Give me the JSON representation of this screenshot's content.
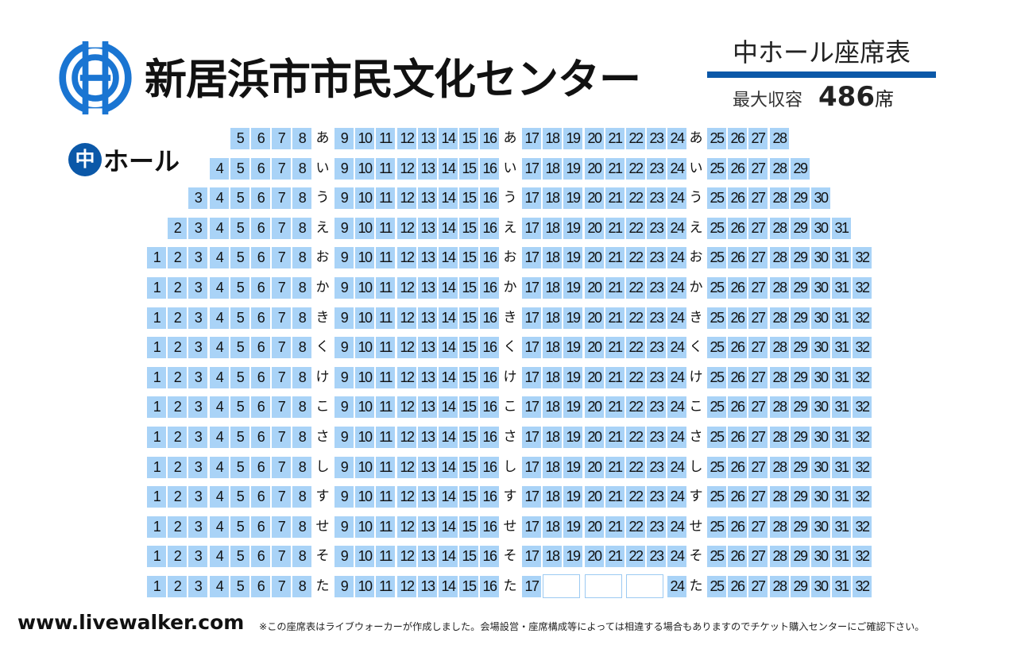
{
  "header": {
    "venue_title": "新居浜市市民文化センター",
    "hall_title": "中ホール座席表",
    "capacity_label": "最大収容",
    "capacity_number": "486",
    "capacity_unit": "席"
  },
  "hall_badge": {
    "circle": "中",
    "text": "ホール"
  },
  "colors": {
    "seat": "#a9d3f7",
    "brand_blue": "#0b58a8"
  },
  "icons": {
    "logo": "city-emblem-icon"
  },
  "seat_map": {
    "rows": [
      {
        "label": "あ",
        "seats": [
          5,
          6,
          7,
          8,
          9,
          10,
          11,
          12,
          13,
          14,
          15,
          16,
          17,
          18,
          19,
          20,
          21,
          22,
          23,
          24,
          25,
          26,
          27,
          28
        ],
        "blank": []
      },
      {
        "label": "い",
        "seats": [
          4,
          5,
          6,
          7,
          8,
          9,
          10,
          11,
          12,
          13,
          14,
          15,
          16,
          17,
          18,
          19,
          20,
          21,
          22,
          23,
          24,
          25,
          26,
          27,
          28,
          29
        ],
        "blank": []
      },
      {
        "label": "う",
        "seats": [
          3,
          4,
          5,
          6,
          7,
          8,
          9,
          10,
          11,
          12,
          13,
          14,
          15,
          16,
          17,
          18,
          19,
          20,
          21,
          22,
          23,
          24,
          25,
          26,
          27,
          28,
          29,
          30
        ],
        "blank": []
      },
      {
        "label": "え",
        "seats": [
          2,
          3,
          4,
          5,
          6,
          7,
          8,
          9,
          10,
          11,
          12,
          13,
          14,
          15,
          16,
          17,
          18,
          19,
          20,
          21,
          22,
          23,
          24,
          25,
          26,
          27,
          28,
          29,
          30,
          31
        ],
        "blank": []
      },
      {
        "label": "お",
        "seats": [
          1,
          2,
          3,
          4,
          5,
          6,
          7,
          8,
          9,
          10,
          11,
          12,
          13,
          14,
          15,
          16,
          17,
          18,
          19,
          20,
          21,
          22,
          23,
          24,
          25,
          26,
          27,
          28,
          29,
          30,
          31,
          32
        ],
        "blank": []
      },
      {
        "label": "か",
        "seats": [
          1,
          2,
          3,
          4,
          5,
          6,
          7,
          8,
          9,
          10,
          11,
          12,
          13,
          14,
          15,
          16,
          17,
          18,
          19,
          20,
          21,
          22,
          23,
          24,
          25,
          26,
          27,
          28,
          29,
          30,
          31,
          32
        ],
        "blank": []
      },
      {
        "label": "き",
        "seats": [
          1,
          2,
          3,
          4,
          5,
          6,
          7,
          8,
          9,
          10,
          11,
          12,
          13,
          14,
          15,
          16,
          17,
          18,
          19,
          20,
          21,
          22,
          23,
          24,
          25,
          26,
          27,
          28,
          29,
          30,
          31,
          32
        ],
        "blank": []
      },
      {
        "label": "く",
        "seats": [
          1,
          2,
          3,
          4,
          5,
          6,
          7,
          8,
          9,
          10,
          11,
          12,
          13,
          14,
          15,
          16,
          17,
          18,
          19,
          20,
          21,
          22,
          23,
          24,
          25,
          26,
          27,
          28,
          29,
          30,
          31,
          32
        ],
        "blank": []
      },
      {
        "label": "け",
        "seats": [
          1,
          2,
          3,
          4,
          5,
          6,
          7,
          8,
          9,
          10,
          11,
          12,
          13,
          14,
          15,
          16,
          17,
          18,
          19,
          20,
          21,
          22,
          23,
          24,
          25,
          26,
          27,
          28,
          29,
          30,
          31,
          32
        ],
        "blank": []
      },
      {
        "label": "こ",
        "seats": [
          1,
          2,
          3,
          4,
          5,
          6,
          7,
          8,
          9,
          10,
          11,
          12,
          13,
          14,
          15,
          16,
          17,
          18,
          19,
          20,
          21,
          22,
          23,
          24,
          25,
          26,
          27,
          28,
          29,
          30,
          31,
          32
        ],
        "blank": []
      },
      {
        "label": "さ",
        "seats": [
          1,
          2,
          3,
          4,
          5,
          6,
          7,
          8,
          9,
          10,
          11,
          12,
          13,
          14,
          15,
          16,
          17,
          18,
          19,
          20,
          21,
          22,
          23,
          24,
          25,
          26,
          27,
          28,
          29,
          30,
          31,
          32
        ],
        "blank": []
      },
      {
        "label": "し",
        "seats": [
          1,
          2,
          3,
          4,
          5,
          6,
          7,
          8,
          9,
          10,
          11,
          12,
          13,
          14,
          15,
          16,
          17,
          18,
          19,
          20,
          21,
          22,
          23,
          24,
          25,
          26,
          27,
          28,
          29,
          30,
          31,
          32
        ],
        "blank": []
      },
      {
        "label": "す",
        "seats": [
          1,
          2,
          3,
          4,
          5,
          6,
          7,
          8,
          9,
          10,
          11,
          12,
          13,
          14,
          15,
          16,
          17,
          18,
          19,
          20,
          21,
          22,
          23,
          24,
          25,
          26,
          27,
          28,
          29,
          30,
          31,
          32
        ],
        "blank": []
      },
      {
        "label": "せ",
        "seats": [
          1,
          2,
          3,
          4,
          5,
          6,
          7,
          8,
          9,
          10,
          11,
          12,
          13,
          14,
          15,
          16,
          17,
          18,
          19,
          20,
          21,
          22,
          23,
          24,
          25,
          26,
          27,
          28,
          29,
          30,
          31,
          32
        ],
        "blank": []
      },
      {
        "label": "そ",
        "seats": [
          1,
          2,
          3,
          4,
          5,
          6,
          7,
          8,
          9,
          10,
          11,
          12,
          13,
          14,
          15,
          16,
          17,
          18,
          19,
          20,
          21,
          22,
          23,
          24,
          25,
          26,
          27,
          28,
          29,
          30,
          31,
          32
        ],
        "blank": []
      },
      {
        "label": "た",
        "seats": [
          1,
          2,
          3,
          4,
          5,
          6,
          7,
          8,
          9,
          10,
          11,
          12,
          13,
          14,
          15,
          16,
          17,
          24,
          25,
          26,
          27,
          28,
          29,
          30,
          31,
          32
        ],
        "blank": [
          18,
          20,
          22
        ]
      }
    ]
  },
  "footer": {
    "site_url": "www.livewalker.com",
    "disclaimer": "※この座席表はライブウォーカーが作成しました。会場設営・座席構成等によっては相違する場合もありますのでチケット購入センターにご確認下さい。"
  }
}
